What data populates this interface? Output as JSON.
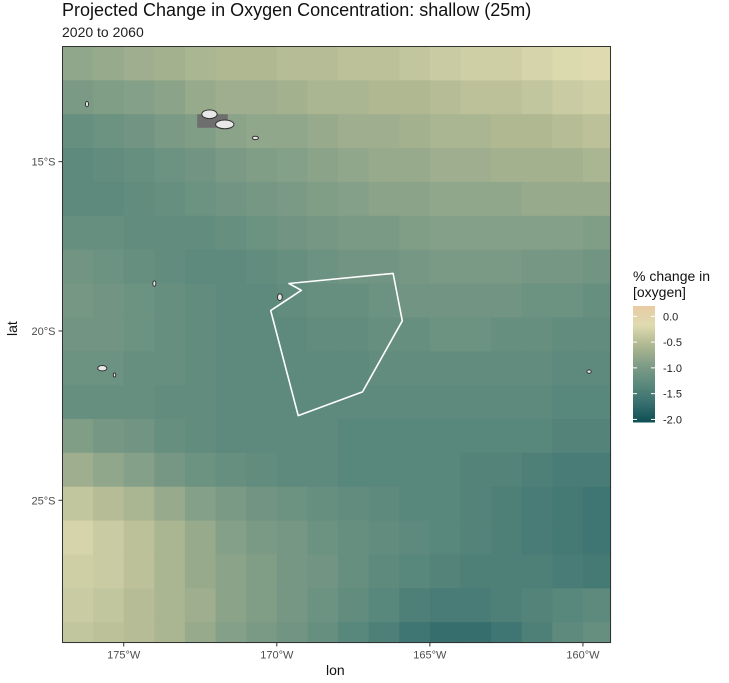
{
  "chart_data": {
    "type": "heatmap",
    "title": "Projected Change in Oxygen Concentration: shallow (25m)",
    "subtitle": "2020 to 2060",
    "xlabel": "lon",
    "ylabel": "lat",
    "xlim": [
      -177,
      -159.1
    ],
    "ylim": [
      -29.2,
      -11.6
    ],
    "x_ticks": [
      -175,
      -170,
      -165,
      -160
    ],
    "x_tick_labels": [
      "175°W",
      "170°W",
      "165°W",
      "160°W"
    ],
    "y_ticks": [
      -15,
      -20,
      -25
    ],
    "y_tick_labels": [
      "15°S",
      "20°S",
      "25°S"
    ],
    "grid": false,
    "legend": {
      "title": "% change in\n[oxygen]",
      "position": "right",
      "range": [
        -2.05,
        0.2
      ],
      "ticks": [
        0.0,
        -0.5,
        -1.0,
        -1.5,
        -2.0
      ],
      "tick_labels": [
        "0.0",
        "-0.5",
        "-1.0",
        "-1.5",
        "-2.0"
      ]
    },
    "colorscale": [
      "#0f4f55",
      "#38706f",
      "#5d8a7d",
      "#829e87",
      "#b0b892",
      "#dedbb0",
      "#e9cba4"
    ],
    "grid_cells": {
      "lon_start": -177,
      "lat_start": -11.6,
      "cell_size": 1,
      "values": [
        [
          -0.8,
          -0.75,
          -0.7,
          -0.65,
          -0.6,
          -0.55,
          -0.55,
          -0.5,
          -0.5,
          -0.45,
          -0.45,
          -0.4,
          -0.35,
          -0.3,
          -0.3,
          -0.25,
          -0.2,
          -0.15
        ],
        [
          -1.0,
          -0.95,
          -0.9,
          -0.85,
          -0.75,
          -0.7,
          -0.7,
          -0.65,
          -0.6,
          -0.6,
          -0.55,
          -0.55,
          -0.5,
          -0.45,
          -0.45,
          -0.4,
          -0.35,
          -0.3
        ],
        [
          -1.2,
          -1.15,
          -1.1,
          -1.0,
          -0.95,
          -0.85,
          -0.8,
          -0.8,
          -0.75,
          -0.7,
          -0.7,
          -0.65,
          -0.6,
          -0.6,
          -0.55,
          -0.55,
          -0.5,
          -0.45
        ],
        [
          -1.3,
          -1.25,
          -1.2,
          -1.15,
          -1.1,
          -1.0,
          -0.95,
          -0.9,
          -0.85,
          -0.8,
          -0.75,
          -0.75,
          -0.7,
          -0.7,
          -0.65,
          -0.65,
          -0.65,
          -0.6
        ],
        [
          -1.3,
          -1.3,
          -1.25,
          -1.2,
          -1.15,
          -1.1,
          -1.05,
          -1.0,
          -0.95,
          -0.9,
          -0.85,
          -0.85,
          -0.8,
          -0.8,
          -0.8,
          -0.75,
          -0.75,
          -0.75
        ],
        [
          -1.2,
          -1.2,
          -1.25,
          -1.25,
          -1.25,
          -1.2,
          -1.15,
          -1.1,
          -1.05,
          -1.0,
          -1.0,
          -0.95,
          -0.9,
          -0.9,
          -0.9,
          -0.9,
          -0.9,
          -0.95
        ],
        [
          -1.1,
          -1.15,
          -1.2,
          -1.25,
          -1.3,
          -1.3,
          -1.25,
          -1.2,
          -1.15,
          -1.1,
          -1.1,
          -1.05,
          -1.0,
          -1.0,
          -1.0,
          -1.05,
          -1.05,
          -1.1
        ],
        [
          -1.05,
          -1.1,
          -1.15,
          -1.2,
          -1.25,
          -1.3,
          -1.3,
          -1.25,
          -1.2,
          -1.2,
          -1.15,
          -1.1,
          -1.1,
          -1.1,
          -1.1,
          -1.15,
          -1.15,
          -1.2
        ],
        [
          -1.1,
          -1.1,
          -1.15,
          -1.2,
          -1.25,
          -1.3,
          -1.3,
          -1.3,
          -1.25,
          -1.25,
          -1.2,
          -1.2,
          -1.15,
          -1.15,
          -1.2,
          -1.2,
          -1.25,
          -1.25
        ],
        [
          -1.15,
          -1.15,
          -1.2,
          -1.2,
          -1.25,
          -1.3,
          -1.3,
          -1.3,
          -1.3,
          -1.3,
          -1.25,
          -1.25,
          -1.25,
          -1.25,
          -1.25,
          -1.25,
          -1.3,
          -1.3
        ],
        [
          -1.2,
          -1.2,
          -1.2,
          -1.25,
          -1.25,
          -1.3,
          -1.3,
          -1.3,
          -1.3,
          -1.3,
          -1.3,
          -1.3,
          -1.3,
          -1.3,
          -1.3,
          -1.3,
          -1.35,
          -1.35
        ],
        [
          -0.95,
          -1.05,
          -1.1,
          -1.2,
          -1.25,
          -1.3,
          -1.3,
          -1.3,
          -1.3,
          -1.35,
          -1.35,
          -1.35,
          -1.35,
          -1.35,
          -1.35,
          -1.35,
          -1.4,
          -1.4
        ],
        [
          -0.7,
          -0.8,
          -0.9,
          -1.05,
          -1.15,
          -1.2,
          -1.25,
          -1.3,
          -1.3,
          -1.35,
          -1.35,
          -1.35,
          -1.35,
          -1.4,
          -1.4,
          -1.45,
          -1.5,
          -1.5
        ],
        [
          -0.4,
          -0.5,
          -0.6,
          -0.75,
          -0.9,
          -1.0,
          -1.1,
          -1.15,
          -1.2,
          -1.25,
          -1.3,
          -1.35,
          -1.35,
          -1.4,
          -1.45,
          -1.5,
          -1.55,
          -1.6
        ],
        [
          -0.25,
          -0.35,
          -0.45,
          -0.6,
          -0.75,
          -0.9,
          -1.0,
          -1.05,
          -1.15,
          -1.2,
          -1.25,
          -1.3,
          -1.35,
          -1.4,
          -1.45,
          -1.5,
          -1.55,
          -1.6
        ],
        [
          -0.3,
          -0.35,
          -0.45,
          -0.6,
          -0.75,
          -0.85,
          -0.95,
          -1.05,
          -1.1,
          -1.2,
          -1.3,
          -1.35,
          -1.4,
          -1.45,
          -1.45,
          -1.45,
          -1.5,
          -1.55
        ],
        [
          -0.35,
          -0.4,
          -0.5,
          -0.6,
          -0.7,
          -0.85,
          -0.95,
          -1.05,
          -1.15,
          -1.25,
          -1.35,
          -1.45,
          -1.5,
          -1.5,
          -1.45,
          -1.4,
          -1.35,
          -1.3
        ],
        [
          -0.4,
          -0.45,
          -0.5,
          -0.6,
          -0.75,
          -0.9,
          -1.0,
          -1.1,
          -1.2,
          -1.35,
          -1.45,
          -1.6,
          -1.7,
          -1.7,
          -1.6,
          -1.45,
          -1.3,
          -1.2
        ],
        [
          0.1,
          0.05,
          -0.15,
          -0.4,
          -0.6,
          -0.85,
          -1.0,
          -1.15,
          -1.35,
          -1.5,
          -1.75,
          -1.95,
          -2.0,
          -1.85,
          -1.7,
          -1.5,
          -1.2,
          -0.95
        ]
      ]
    },
    "map_overlays": {
      "boundary_polygon": [
        [
          -169.6,
          -18.6
        ],
        [
          -166.2,
          -18.3
        ],
        [
          -165.9,
          -19.7
        ],
        [
          -167.2,
          -21.8
        ],
        [
          -169.3,
          -22.5
        ],
        [
          -170.2,
          -19.4
        ],
        [
          -169.2,
          -18.8
        ]
      ],
      "islands": [
        {
          "lon": -172.2,
          "lat": -13.6,
          "rx": 0.25,
          "ry": 0.13
        },
        {
          "lon": -171.7,
          "lat": -13.9,
          "rx": 0.3,
          "ry": 0.13
        },
        {
          "lon": -176.2,
          "lat": -13.3,
          "rx": 0.05,
          "ry": 0.08
        },
        {
          "lon": -170.7,
          "lat": -14.3,
          "rx": 0.1,
          "ry": 0.05
        },
        {
          "lon": -174.0,
          "lat": -18.6,
          "rx": 0.05,
          "ry": 0.08
        },
        {
          "lon": -169.9,
          "lat": -19.0,
          "rx": 0.08,
          "ry": 0.1
        },
        {
          "lon": -175.7,
          "lat": -21.1,
          "rx": 0.15,
          "ry": 0.08
        },
        {
          "lon": -175.3,
          "lat": -21.3,
          "rx": 0.04,
          "ry": 0.06
        },
        {
          "lon": -159.8,
          "lat": -21.2,
          "rx": 0.07,
          "ry": 0.05
        }
      ],
      "landmask_rect": {
        "lon0": -172.6,
        "lon1": -171.6,
        "lat0": -13.6,
        "lat1": -14.0,
        "color": "#6e6e6e"
      }
    }
  }
}
